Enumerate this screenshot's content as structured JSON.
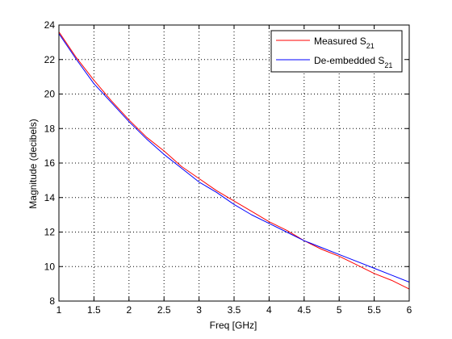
{
  "chart_data": {
    "type": "line",
    "xlabel": "Freq [GHz]",
    "ylabel": "Magnitude (decibels)",
    "xlim": [
      1,
      6
    ],
    "ylim": [
      8,
      24
    ],
    "xticks": [
      1,
      1.5,
      2,
      2.5,
      3,
      3.5,
      4,
      4.5,
      5,
      5.5,
      6
    ],
    "yticks": [
      8,
      10,
      12,
      14,
      16,
      18,
      20,
      22,
      24
    ],
    "xtick_labels": [
      "1",
      "1.5",
      "2",
      "2.5",
      "3",
      "3.5",
      "4",
      "4.5",
      "5",
      "5.5",
      "6"
    ],
    "ytick_labels": [
      "8",
      "10",
      "12",
      "14",
      "16",
      "18",
      "20",
      "22",
      "24"
    ],
    "grid": "dotted",
    "legend_position": "top-right",
    "series": [
      {
        "name": "Measured S",
        "name_subscript": "21",
        "color": "#ff0000",
        "x": [
          1.0,
          1.25,
          1.5,
          1.75,
          2.0,
          2.25,
          2.5,
          2.75,
          3.0,
          3.25,
          3.5,
          3.75,
          4.0,
          4.25,
          4.5,
          4.75,
          5.0,
          5.25,
          5.5,
          5.75,
          6.0
        ],
        "y": [
          23.6,
          22.1,
          20.8,
          19.6,
          18.5,
          17.5,
          16.7,
          15.8,
          15.1,
          14.4,
          13.8,
          13.2,
          12.6,
          12.1,
          11.5,
          11.0,
          10.6,
          10.1,
          9.6,
          9.2,
          8.7
        ]
      },
      {
        "name": "De-embedded S",
        "name_subscript": "21",
        "color": "#0000ff",
        "x": [
          1.0,
          1.25,
          1.5,
          1.75,
          2.0,
          2.25,
          2.5,
          2.75,
          3.0,
          3.25,
          3.5,
          3.75,
          4.0,
          4.25,
          4.5,
          4.75,
          5.0,
          5.25,
          5.5,
          5.75,
          6.0
        ],
        "y": [
          23.5,
          22.0,
          20.6,
          19.5,
          18.4,
          17.4,
          16.5,
          15.7,
          14.9,
          14.3,
          13.6,
          13.0,
          12.5,
          12.0,
          11.5,
          11.1,
          10.7,
          10.3,
          9.9,
          9.5,
          9.1
        ]
      }
    ]
  }
}
